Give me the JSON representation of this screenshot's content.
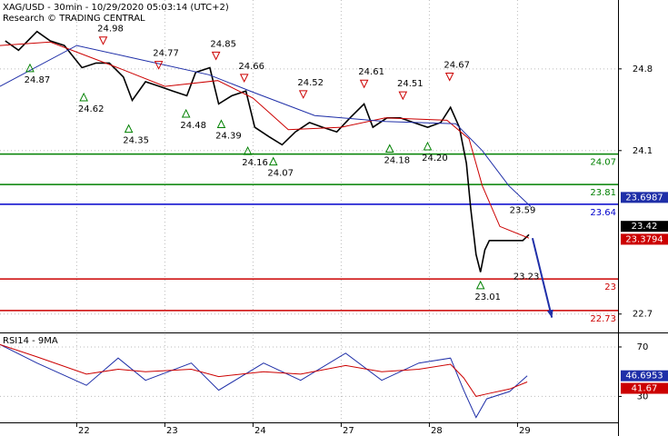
{
  "header": {
    "title": "XAG/USD - 30min - 10/29/2020 05:03:14 (UTC+2)",
    "subtitle": "Research © TRADING CENTRAL"
  },
  "chart_data": [
    {
      "type": "line",
      "xlim": [
        0.13,
        7.14
      ],
      "xticks": [
        {
          "value": 1,
          "label": "22"
        },
        {
          "value": 2,
          "label": "23"
        },
        {
          "value": 3,
          "label": "24"
        },
        {
          "value": 4,
          "label": "27"
        },
        {
          "value": 5,
          "label": "28"
        },
        {
          "value": 6,
          "label": "29"
        }
      ],
      "ylim": [
        22.55,
        25.39
      ],
      "yticks": [
        24.8,
        24.1,
        22.7
      ],
      "grid": true,
      "series": [
        {
          "color": "#000000",
          "x": [
            0.19,
            0.34,
            0.55,
            0.7,
            0.86,
            1.06,
            1.22,
            1.37,
            1.53,
            1.63,
            1.78,
            1.94,
            2.09,
            2.25,
            2.35,
            2.51,
            2.61,
            2.76,
            2.92,
            3.02,
            3.18,
            3.33,
            3.48,
            3.64,
            3.79,
            3.95,
            4.1,
            4.26,
            4.36,
            4.52,
            4.67,
            4.82,
            4.98,
            5.13,
            5.24,
            5.34,
            5.42,
            5.47,
            5.53,
            5.58,
            5.63,
            5.68,
            5.8,
            5.96,
            6.06,
            6.13
          ],
          "values": [
            25.04,
            24.96,
            25.12,
            25.04,
            25.0,
            24.81,
            24.85,
            24.85,
            24.73,
            24.53,
            24.69,
            24.65,
            24.61,
            24.57,
            24.77,
            24.81,
            24.5,
            24.57,
            24.61,
            24.3,
            24.22,
            24.15,
            24.26,
            24.34,
            24.3,
            24.26,
            24.38,
            24.5,
            24.3,
            24.38,
            24.38,
            24.34,
            24.3,
            24.34,
            24.47,
            24.3,
            23.99,
            23.6,
            23.21,
            23.06,
            23.25,
            23.33,
            23.33,
            23.33,
            23.33,
            23.38
          ]
        },
        {
          "color": "#cc0000",
          "x": [
            0.13,
            0.7,
            1.5,
            2.0,
            2.6,
            3.0,
            3.4,
            4.0,
            4.5,
            5.2,
            5.45,
            5.6,
            5.8,
            6.13
          ],
          "values": [
            25.0,
            25.03,
            24.8,
            24.65,
            24.7,
            24.55,
            24.28,
            24.3,
            24.38,
            24.36,
            24.2,
            23.8,
            23.45,
            23.35
          ]
        },
        {
          "color": "#1f2fa8",
          "x": [
            0.13,
            1.0,
            1.6,
            2.5,
            3.0,
            3.7,
            4.5,
            5.3,
            5.6,
            5.9,
            6.15
          ],
          "values": [
            24.65,
            25.0,
            24.9,
            24.75,
            24.6,
            24.4,
            24.35,
            24.33,
            24.1,
            23.8,
            23.62
          ]
        }
      ],
      "levels": [
        {
          "value": 24.07,
          "color": "#008000"
        },
        {
          "value": 23.81,
          "color": "#008000"
        },
        {
          "value": 23.64,
          "color": "#0000cc"
        },
        {
          "value": 23,
          "color": "#cc0000"
        },
        {
          "value": 22.73,
          "color": "#cc0000"
        }
      ],
      "highs": {
        "color": "#cc0000",
        "x": [
          1.3,
          1.93,
          2.58,
          2.9,
          3.57,
          4.26,
          4.7,
          5.23
        ],
        "values": [
          24.98,
          24.77,
          24.85,
          24.66,
          24.52,
          24.61,
          24.51,
          24.67
        ]
      },
      "lows": {
        "color": "#008000",
        "x": [
          0.47,
          1.08,
          1.59,
          2.24,
          2.64,
          2.94,
          3.23,
          4.55,
          4.98,
          5.58
        ],
        "values": [
          24.87,
          24.62,
          24.35,
          24.48,
          24.39,
          24.16,
          24.07,
          24.18,
          24.2,
          23.01
        ],
        "value_labels": [
          "24.87",
          "24.62",
          "24.35",
          "24.48",
          "24.39",
          "24.16",
          "24.07",
          "24.18",
          "24.20",
          "23.01"
        ]
      },
      "annotations": [
        {
          "x": 5.91,
          "value": 23.59
        },
        {
          "x": 6.1,
          "value": 23.23
        }
      ],
      "arrow": {
        "color": "#1f2fa8",
        "x": [
          6.17,
          6.39
        ],
        "values": [
          23.35,
          22.67
        ]
      },
      "last_values": [
        {
          "value": 23.6987,
          "color": "#1f2fa8"
        },
        {
          "value": 23.42,
          "color": "#000000"
        },
        {
          "value": 23.3794,
          "color": "#cc0000"
        }
      ]
    },
    {
      "type": "line",
      "label": "RSI14 - 9MA",
      "xlim": [
        0.13,
        7.14
      ],
      "ylim": [
        9,
        81
      ],
      "yticks": [
        70,
        30
      ],
      "series": [
        {
          "color": "#1f2fa8",
          "x": [
            0.13,
            0.55,
            1.11,
            1.47,
            1.78,
            2.3,
            2.61,
            3.12,
            3.54,
            4.05,
            4.46,
            4.88,
            5.24,
            5.39,
            5.53,
            5.65,
            5.91,
            6.11
          ],
          "values": [
            72,
            57,
            39,
            61,
            43,
            57,
            35,
            57,
            43,
            65,
            43,
            57,
            61,
            35,
            13,
            28,
            34,
            46.7
          ]
        },
        {
          "color": "#cc0000",
          "x": [
            0.13,
            0.55,
            1.11,
            1.47,
            1.78,
            2.3,
            2.61,
            3.12,
            3.54,
            4.05,
            4.46,
            4.88,
            5.24,
            5.39,
            5.53,
            5.65,
            5.91,
            6.11
          ],
          "values": [
            72,
            62,
            48,
            52,
            50,
            52,
            46,
            50,
            48,
            55,
            50,
            52,
            56,
            45,
            30,
            32,
            36,
            41.7
          ]
        }
      ],
      "last_values": [
        {
          "value": 46.6953,
          "color": "#1f2fa8"
        },
        {
          "value": 41.67,
          "color": "#cc0000"
        }
      ]
    }
  ]
}
